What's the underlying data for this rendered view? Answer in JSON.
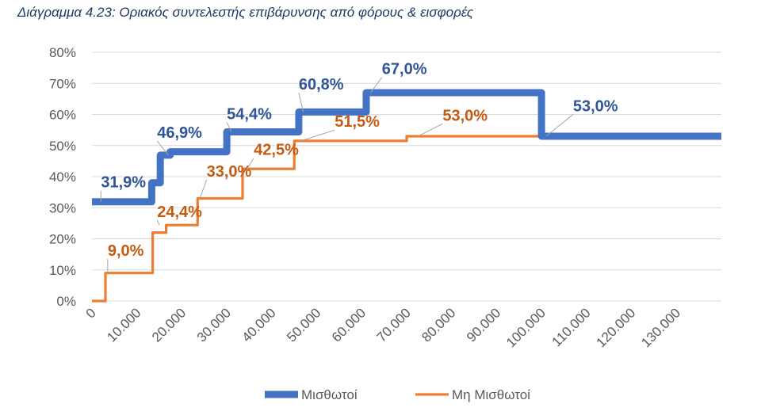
{
  "title": "Διάγραμμα 4.23: Οριακός συντελεστής επιβάρυνσης από φόρους & εισφορές",
  "colors": {
    "series1": "#4472C4",
    "series2": "#ED7D31",
    "grid": "#d9d9d9",
    "label1": "#2f5597",
    "label2": "#c55a11"
  },
  "chart_data": {
    "type": "line",
    "title": "Διάγραμμα 4.23: Οριακός συντελεστής επιβάρυνσης από φόρους & εισφορές",
    "xlim": [
      0,
      140000
    ],
    "ylim": [
      0,
      80
    ],
    "grid": true,
    "legend_position": "bottom",
    "y_ticks": [
      "0%",
      "10%",
      "20%",
      "30%",
      "40%",
      "50%",
      "60%",
      "70%",
      "80%"
    ],
    "x_ticks": [
      {
        "v": 0,
        "label": "0"
      },
      {
        "v": 10000,
        "label": "10.000"
      },
      {
        "v": 20000,
        "label": "20.000"
      },
      {
        "v": 30000,
        "label": "30.000"
      },
      {
        "v": 40000,
        "label": "40.000"
      },
      {
        "v": 50000,
        "label": "50.000"
      },
      {
        "v": 60000,
        "label": "60.000"
      },
      {
        "v": 70000,
        "label": "70.000"
      },
      {
        "v": 80000,
        "label": "80.000"
      },
      {
        "v": 90000,
        "label": "90.000"
      },
      {
        "v": 100000,
        "label": "100.000"
      },
      {
        "v": 110000,
        "label": "110.000"
      },
      {
        "v": 120000,
        "label": "120.000"
      },
      {
        "v": 130000,
        "label": "130.000"
      }
    ],
    "series": [
      {
        "name": "Μισθωτοί",
        "x": [
          0,
          13300,
          13300,
          15200,
          15200,
          16200,
          16200,
          17400,
          17400,
          30000,
          30000,
          31000,
          31000,
          46000,
          46000,
          47000,
          47000,
          61000,
          61000,
          62000,
          62000,
          100000,
          100000,
          101000,
          101000,
          140000
        ],
        "y": [
          31.9,
          31.9,
          38.0,
          38.0,
          46.9,
          46.9,
          46.9,
          46.9,
          48.0,
          48.0,
          54.4,
          54.4,
          54.4,
          54.4,
          60.8,
          60.8,
          60.8,
          60.8,
          67.0,
          67.0,
          67.0,
          67.0,
          53.0,
          53.0,
          53.0,
          53.0
        ],
        "labels": [
          {
            "x": 2000,
            "y": 31.9,
            "text": "31,9%",
            "tx": 2000,
            "ty": 36.5
          },
          {
            "x": 17000,
            "y": 46.9,
            "text": "46,9%",
            "tx": 14500,
            "ty": 52.5
          },
          {
            "x": 31000,
            "y": 54.4,
            "text": "54,4%",
            "tx": 30000,
            "ty": 58.5
          },
          {
            "x": 47000,
            "y": 60.8,
            "text": "60,8%",
            "tx": 46000,
            "ty": 68.0
          },
          {
            "x": 62000,
            "y": 67.0,
            "text": "67,0%",
            "tx": 64500,
            "ty": 73.0
          },
          {
            "x": 101000,
            "y": 53.0,
            "text": "53,0%",
            "tx": 107000,
            "ty": 61.0
          }
        ]
      },
      {
        "name": "Μη Μισθωτοί",
        "x": [
          0,
          3000,
          3000,
          13500,
          13500,
          15000,
          15000,
          16500,
          16500,
          23500,
          23500,
          33500,
          33500,
          45000,
          45000,
          70000,
          70000,
          140000
        ],
        "y": [
          0,
          0,
          9.0,
          9.0,
          22.0,
          22.0,
          22.0,
          22.0,
          24.4,
          24.4,
          33.0,
          33.0,
          42.5,
          42.5,
          51.5,
          51.5,
          53.0,
          53.0
        ],
        "labels": [
          {
            "x": 3500,
            "y": 9.0,
            "text": "9,0%",
            "tx": 3500,
            "ty": 14.5
          },
          {
            "x": 15000,
            "y": 24.4,
            "text": "24,4%",
            "tx": 14500,
            "ty": 27.0
          },
          {
            "x": 24000,
            "y": 33.0,
            "text": "33,0%",
            "tx": 25500,
            "ty": 40.0
          },
          {
            "x": 34500,
            "y": 42.5,
            "text": "42,5%",
            "tx": 36000,
            "ty": 47.0
          },
          {
            "x": 46500,
            "y": 51.5,
            "text": "51,5%",
            "tx": 54000,
            "ty": 56.0
          },
          {
            "x": 72500,
            "y": 53.0,
            "text": "53,0%",
            "tx": 78000,
            "ty": 58.0
          }
        ]
      }
    ]
  }
}
